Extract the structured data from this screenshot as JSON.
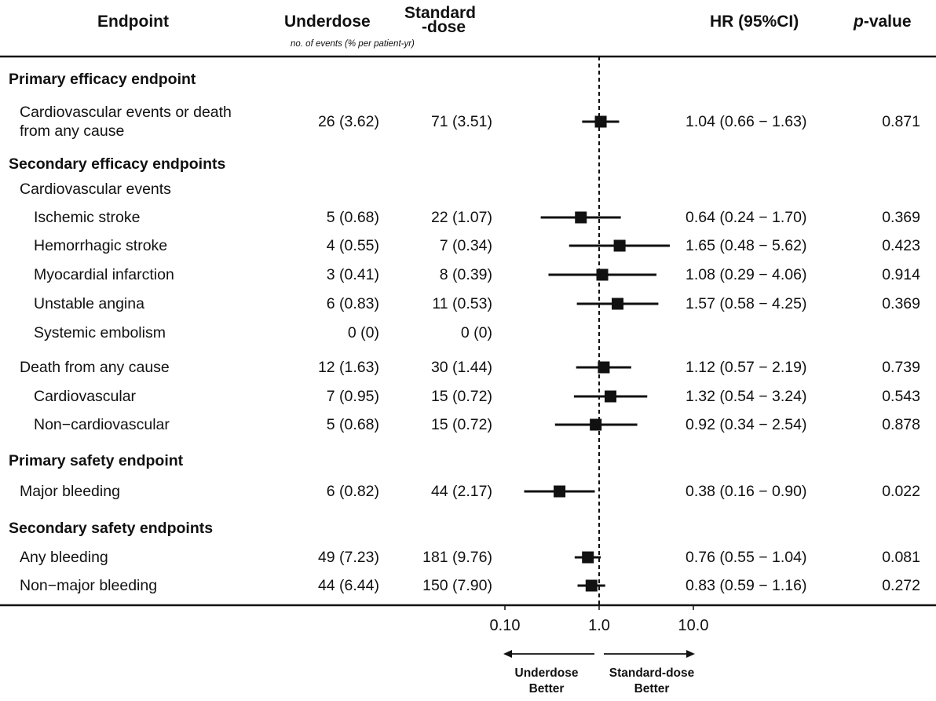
{
  "headers": {
    "endpoint": "Endpoint",
    "underdose": "Underdose",
    "standard_line1": "Standard",
    "standard_line2": "-dose",
    "events_note": "no. of events (% per patient-yr)",
    "hr": "HR (95%CI)",
    "p_value": "p-value"
  },
  "axis": {
    "scale": "log",
    "reference_line": 1.0,
    "tick_values": [
      0.1,
      1.0,
      10.0
    ],
    "tick_labels": [
      "0.10",
      "1.0",
      "10.0"
    ],
    "left_arrow_label_line1": "Underdose",
    "left_arrow_label_line2": "Better",
    "right_arrow_label_line1": "Standard-dose",
    "right_arrow_label_line2": "Better"
  },
  "chart_data": {
    "type": "forest",
    "xscale": "log",
    "rows": [
      {
        "label": "Primary efficacy endpoint",
        "kind": "section"
      },
      {
        "label": "Cardiovascular events or death",
        "label2": "from any cause",
        "kind": "item",
        "indent": 1,
        "under": "26 (3.62)",
        "std": "71 (3.51)",
        "hr_text": "1.04 (0.66 − 1.63)",
        "p": "0.871",
        "hr": 1.04,
        "lo": 0.66,
        "hi": 1.63
      },
      {
        "label": "Secondary efficacy endpoints",
        "kind": "section"
      },
      {
        "label": "Cardiovascular events",
        "kind": "group",
        "indent": 1
      },
      {
        "label": "Ischemic stroke",
        "kind": "item",
        "indent": 2,
        "under": "5 (0.68)",
        "std": "22 (1.07)",
        "hr_text": "0.64 (0.24 − 1.70)",
        "p": "0.369",
        "hr": 0.64,
        "lo": 0.24,
        "hi": 1.7
      },
      {
        "label": "Hemorrhagic stroke",
        "kind": "item",
        "indent": 2,
        "under": "4 (0.55)",
        "std": "7 (0.34)",
        "hr_text": "1.65 (0.48 − 5.62)",
        "p": "0.423",
        "hr": 1.65,
        "lo": 0.48,
        "hi": 5.62
      },
      {
        "label": "Myocardial infarction",
        "kind": "item",
        "indent": 2,
        "under": "3 (0.41)",
        "std": "8 (0.39)",
        "hr_text": "1.08 (0.29 − 4.06)",
        "p": "0.914",
        "hr": 1.08,
        "lo": 0.29,
        "hi": 4.06
      },
      {
        "label": "Unstable angina",
        "kind": "item",
        "indent": 2,
        "under": "6 (0.83)",
        "std": "11 (0.53)",
        "hr_text": "1.57 (0.58 − 4.25)",
        "p": "0.369",
        "hr": 1.57,
        "lo": 0.58,
        "hi": 4.25
      },
      {
        "label": "Systemic embolism",
        "kind": "item",
        "indent": 2,
        "under": "0 (0)",
        "std": "0 (0)",
        "hr_text": "",
        "p": ""
      },
      {
        "label": "Death from any cause",
        "kind": "item",
        "indent": 1,
        "under": "12 (1.63)",
        "std": "30 (1.44)",
        "hr_text": "1.12 (0.57 − 2.19)",
        "p": "0.739",
        "hr": 1.12,
        "lo": 0.57,
        "hi": 2.19
      },
      {
        "label": "Cardiovascular",
        "kind": "item",
        "indent": 2,
        "under": "7 (0.95)",
        "std": "15 (0.72)",
        "hr_text": "1.32 (0.54 − 3.24)",
        "p": "0.543",
        "hr": 1.32,
        "lo": 0.54,
        "hi": 3.24
      },
      {
        "label": "Non−cardiovascular",
        "kind": "item",
        "indent": 2,
        "under": "5 (0.68)",
        "std": "15 (0.72)",
        "hr_text": "0.92 (0.34 − 2.54)",
        "p": "0.878",
        "hr": 0.92,
        "lo": 0.34,
        "hi": 2.54
      },
      {
        "label": "Primary safety endpoint",
        "kind": "section"
      },
      {
        "label": "Major bleeding",
        "kind": "item",
        "indent": 1,
        "under": "6 (0.82)",
        "std": "44 (2.17)",
        "hr_text": "0.38 (0.16 − 0.90)",
        "p": "0.022",
        "hr": 0.38,
        "lo": 0.16,
        "hi": 0.9
      },
      {
        "label": "Secondary safety endpoints",
        "kind": "section"
      },
      {
        "label": "Any bleeding",
        "kind": "item",
        "indent": 1,
        "under": "49 (7.23)",
        "std": "181 (9.76)",
        "hr_text": "0.76 (0.55 − 1.04)",
        "p": "0.081",
        "hr": 0.76,
        "lo": 0.55,
        "hi": 1.04
      },
      {
        "label": "Non−major bleeding",
        "kind": "item",
        "indent": 1,
        "under": "44 (6.44)",
        "std": "150 (7.90)",
        "hr_text": "0.83 (0.59 − 1.16)",
        "p": "0.272",
        "hr": 0.83,
        "lo": 0.59,
        "hi": 1.16
      }
    ]
  }
}
